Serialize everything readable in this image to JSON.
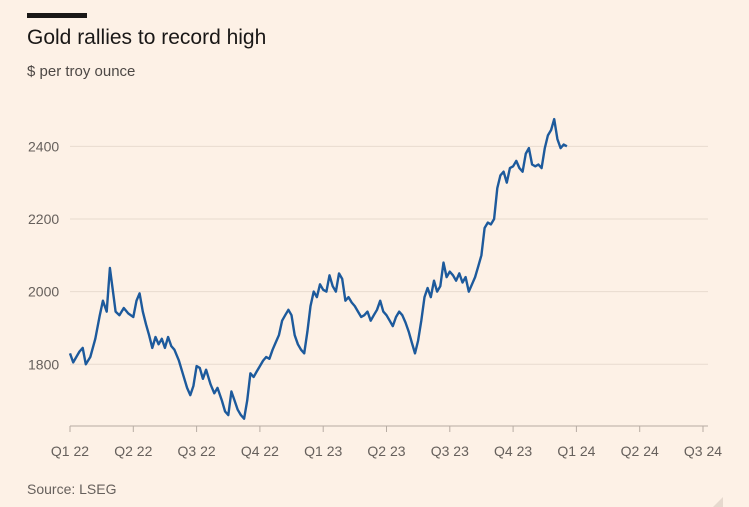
{
  "header": {
    "title": "Gold rallies to record high",
    "subtitle": "$ per troy ounce"
  },
  "footer": {
    "source": "Source: LSEG"
  },
  "chart_data": {
    "type": "line",
    "title": "Gold rallies to record high",
    "ylabel": "$ per troy ounce",
    "xlabel": "",
    "ylim": [
      1630,
      2500
    ],
    "yticks": [
      1800,
      2000,
      2200,
      2400
    ],
    "xticks": [
      "Q1 22",
      "Q2 22",
      "Q3 22",
      "Q4 22",
      "Q1 23",
      "Q2 23",
      "Q3 23",
      "Q4 23",
      "Q1 24",
      "Q2 24",
      "Q3 24"
    ],
    "grid": "horizontal",
    "line_color": "#1d5a9c",
    "series": [
      {
        "values": [
          [
            0.0,
            1830
          ],
          [
            0.05,
            1805
          ],
          [
            0.1,
            1820
          ],
          [
            0.15,
            1835
          ],
          [
            0.2,
            1845
          ],
          [
            0.25,
            1800
          ],
          [
            0.32,
            1820
          ],
          [
            0.4,
            1870
          ],
          [
            0.47,
            1935
          ],
          [
            0.52,
            1975
          ],
          [
            0.58,
            1945
          ],
          [
            0.63,
            2065
          ],
          [
            0.68,
            2000
          ],
          [
            0.72,
            1945
          ],
          [
            0.78,
            1935
          ],
          [
            0.85,
            1955
          ],
          [
            0.92,
            1940
          ],
          [
            1.0,
            1930
          ],
          [
            1.05,
            1975
          ],
          [
            1.1,
            1995
          ],
          [
            1.15,
            1945
          ],
          [
            1.2,
            1910
          ],
          [
            1.25,
            1880
          ],
          [
            1.3,
            1845
          ],
          [
            1.35,
            1875
          ],
          [
            1.4,
            1855
          ],
          [
            1.45,
            1870
          ],
          [
            1.5,
            1845
          ],
          [
            1.55,
            1875
          ],
          [
            1.6,
            1850
          ],
          [
            1.65,
            1840
          ],
          [
            1.72,
            1810
          ],
          [
            1.78,
            1775
          ],
          [
            1.85,
            1735
          ],
          [
            1.9,
            1715
          ],
          [
            1.95,
            1740
          ],
          [
            2.0,
            1795
          ],
          [
            2.05,
            1790
          ],
          [
            2.1,
            1760
          ],
          [
            2.15,
            1785
          ],
          [
            2.22,
            1745
          ],
          [
            2.28,
            1720
          ],
          [
            2.33,
            1735
          ],
          [
            2.4,
            1700
          ],
          [
            2.45,
            1670
          ],
          [
            2.5,
            1660
          ],
          [
            2.55,
            1725
          ],
          [
            2.6,
            1700
          ],
          [
            2.65,
            1675
          ],
          [
            2.7,
            1660
          ],
          [
            2.75,
            1650
          ],
          [
            2.8,
            1700
          ],
          [
            2.85,
            1775
          ],
          [
            2.9,
            1765
          ],
          [
            2.95,
            1780
          ],
          [
            3.0,
            1795
          ],
          [
            3.05,
            1810
          ],
          [
            3.1,
            1820
          ],
          [
            3.15,
            1815
          ],
          [
            3.2,
            1840
          ],
          [
            3.25,
            1860
          ],
          [
            3.3,
            1880
          ],
          [
            3.35,
            1920
          ],
          [
            3.4,
            1935
          ],
          [
            3.45,
            1950
          ],
          [
            3.5,
            1935
          ],
          [
            3.55,
            1880
          ],
          [
            3.6,
            1855
          ],
          [
            3.65,
            1840
          ],
          [
            3.7,
            1830
          ],
          [
            3.75,
            1890
          ],
          [
            3.8,
            1960
          ],
          [
            3.85,
            2000
          ],
          [
            3.9,
            1985
          ],
          [
            3.95,
            2020
          ],
          [
            4.0,
            2005
          ],
          [
            4.05,
            2000
          ],
          [
            4.1,
            2045
          ],
          [
            4.15,
            2015
          ],
          [
            4.2,
            2000
          ],
          [
            4.25,
            2050
          ],
          [
            4.3,
            2035
          ],
          [
            4.35,
            1975
          ],
          [
            4.4,
            1985
          ],
          [
            4.45,
            1970
          ],
          [
            4.5,
            1960
          ],
          [
            4.55,
            1945
          ],
          [
            4.6,
            1930
          ],
          [
            4.65,
            1935
          ],
          [
            4.7,
            1945
          ],
          [
            4.75,
            1920
          ],
          [
            4.8,
            1935
          ],
          [
            4.85,
            1950
          ],
          [
            4.9,
            1975
          ],
          [
            4.95,
            1945
          ],
          [
            5.0,
            1935
          ],
          [
            5.05,
            1920
          ],
          [
            5.1,
            1905
          ],
          [
            5.15,
            1930
          ],
          [
            5.2,
            1945
          ],
          [
            5.25,
            1935
          ],
          [
            5.3,
            1915
          ],
          [
            5.35,
            1890
          ],
          [
            5.4,
            1860
          ],
          [
            5.45,
            1830
          ],
          [
            5.5,
            1865
          ],
          [
            5.55,
            1920
          ],
          [
            5.6,
            1985
          ],
          [
            5.65,
            2010
          ],
          [
            5.7,
            1985
          ],
          [
            5.75,
            2030
          ],
          [
            5.8,
            2000
          ],
          [
            5.85,
            2015
          ],
          [
            5.9,
            2080
          ],
          [
            5.95,
            2040
          ],
          [
            6.0,
            2055
          ],
          [
            6.05,
            2045
          ],
          [
            6.1,
            2030
          ],
          [
            6.15,
            2050
          ],
          [
            6.2,
            2025
          ],
          [
            6.25,
            2040
          ],
          [
            6.3,
            2000
          ],
          [
            6.35,
            2020
          ],
          [
            6.4,
            2040
          ],
          [
            6.45,
            2070
          ],
          [
            6.5,
            2100
          ],
          [
            6.55,
            2175
          ],
          [
            6.6,
            2190
          ],
          [
            6.65,
            2185
          ],
          [
            6.7,
            2200
          ],
          [
            6.75,
            2285
          ],
          [
            6.8,
            2320
          ],
          [
            6.85,
            2330
          ],
          [
            6.9,
            2300
          ],
          [
            6.95,
            2340
          ],
          [
            7.0,
            2345
          ],
          [
            7.05,
            2360
          ],
          [
            7.1,
            2340
          ],
          [
            7.15,
            2330
          ],
          [
            7.2,
            2380
          ],
          [
            7.25,
            2395
          ],
          [
            7.3,
            2350
          ],
          [
            7.35,
            2345
          ],
          [
            7.4,
            2350
          ],
          [
            7.45,
            2340
          ],
          [
            7.5,
            2395
          ],
          [
            7.55,
            2430
          ],
          [
            7.6,
            2445
          ],
          [
            7.65,
            2475
          ],
          [
            7.7,
            2420
          ],
          [
            7.75,
            2395
          ],
          [
            7.8,
            2405
          ],
          [
            7.85,
            2400
          ]
        ]
      }
    ]
  }
}
